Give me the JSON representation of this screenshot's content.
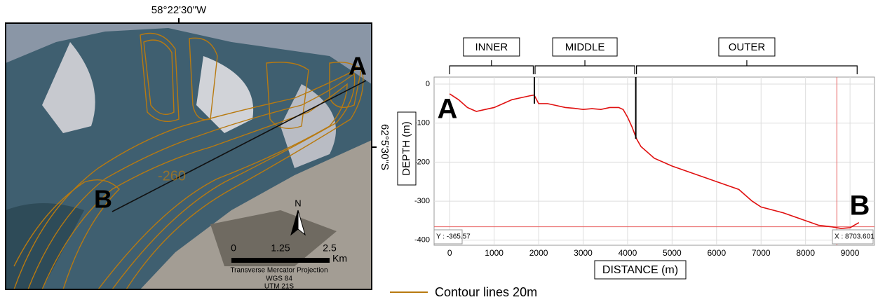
{
  "chart_data": {
    "type": "line",
    "xlabel": "DISTANCE (m)",
    "ylabel": "DEPTH (m)",
    "color": "#e01010",
    "x": [
      0,
      200,
      400,
      600,
      800,
      1000,
      1200,
      1400,
      1600,
      1800,
      1900,
      2000,
      2200,
      2400,
      2600,
      2800,
      3000,
      3200,
      3400,
      3600,
      3800,
      3900,
      4000,
      4100,
      4200,
      4300,
      4600,
      5000,
      5500,
      6000,
      6500,
      6800,
      7000,
      7500,
      8000,
      8300,
      8600,
      8800,
      9000,
      9200
    ],
    "values": [
      -25,
      -40,
      -60,
      -70,
      -65,
      -60,
      -50,
      -40,
      -35,
      -30,
      -28,
      -50,
      -50,
      -55,
      -60,
      -62,
      -65,
      -63,
      -65,
      -60,
      -60,
      -65,
      -85,
      -110,
      -140,
      -160,
      -190,
      -210,
      -230,
      -250,
      -270,
      -300,
      -315,
      -330,
      -350,
      -362,
      -366,
      -370,
      -368,
      -355
    ],
    "xlim": [
      -350,
      9550
    ],
    "ylim": [
      -413,
      18
    ],
    "xticks": [
      0,
      1000,
      2000,
      3000,
      4000,
      5000,
      6000,
      7000,
      8000,
      9000
    ],
    "yticks": [
      0,
      -100,
      -200,
      -300,
      -400
    ],
    "grid": true,
    "sections": [
      {
        "label": "INNER",
        "start": 0,
        "end": 1880
      },
      {
        "label": "MIDDLE",
        "start": 1920,
        "end": 4160
      },
      {
        "label": "OUTER",
        "start": 4200,
        "end": 9160
      }
    ],
    "start_label": "A",
    "end_label": "B",
    "crosshair": {
      "x": 8703.601,
      "x_label": "X : 8703.601",
      "y": -365.57,
      "y_label": "Y : -365.57"
    }
  },
  "map": {
    "top_coord": "58°22'30\"W",
    "side_coord": "62°5'30\"S",
    "point_a": "A",
    "point_b": "B",
    "contour_label": "-260",
    "north": "N",
    "scale_ticks": [
      "0",
      "1.25",
      "2.5"
    ],
    "scale_unit": "Km",
    "projection": "Transverse Mercator Projection",
    "datum": "WGS 84",
    "zone": "UTM 21S"
  },
  "legend": {
    "label": "Contour lines 20m"
  }
}
